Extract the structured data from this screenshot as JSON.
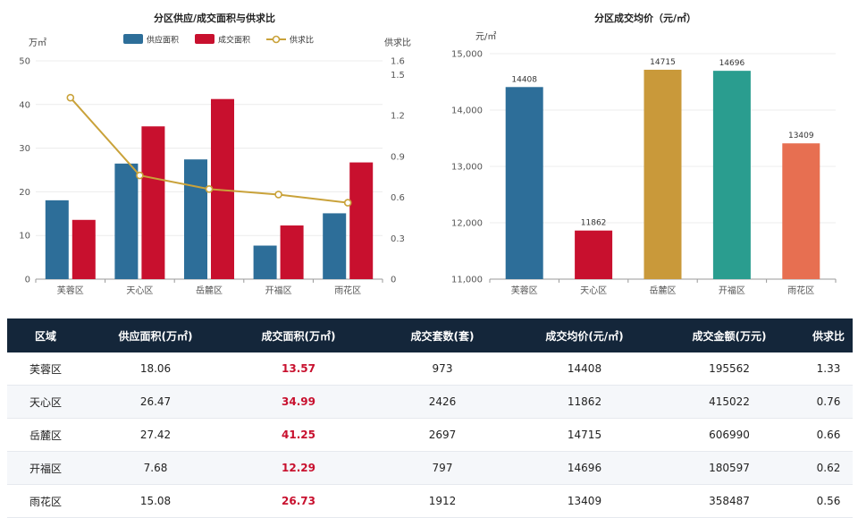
{
  "chart_data": [
    {
      "type": "bar",
      "title": "分区供应/成交面积与供求比",
      "y_left_unit": "万㎡",
      "y_right_unit": "供求比",
      "categories": [
        "芙蓉区",
        "天心区",
        "岳麓区",
        "开福区",
        "雨花区"
      ],
      "series": [
        {
          "name": "供应面积",
          "type": "bar",
          "axis": "left",
          "color": "#2d6e99",
          "values": [
            18.06,
            26.47,
            27.42,
            7.68,
            15.08
          ]
        },
        {
          "name": "成交面积",
          "type": "bar",
          "axis": "left",
          "color": "#c8102e",
          "values": [
            13.57,
            34.99,
            41.25,
            12.29,
            26.73
          ]
        },
        {
          "name": "供求比",
          "type": "line",
          "axis": "right",
          "color": "#c9a23a",
          "values": [
            1.33,
            0.76,
            0.66,
            0.62,
            0.56
          ]
        }
      ],
      "ylim_left": [
        0,
        50
      ],
      "yticks_left": [
        0,
        10,
        20,
        30,
        40,
        50
      ],
      "ylim_right": [
        0,
        1.6
      ],
      "yticks_right": [
        0,
        0.3,
        0.6,
        0.9,
        1.2,
        1.5,
        1.6
      ],
      "ytick_labels_right": [
        "0",
        "0.3",
        "0.6",
        "0.9",
        "1.2",
        "1.5",
        "1.6"
      ],
      "legend_position": "top-center",
      "grid": true
    },
    {
      "type": "bar",
      "title": "分区成交均价（元/㎡）",
      "y_unit": "元/㎡",
      "categories": [
        "芙蓉区",
        "天心区",
        "岳麓区",
        "开福区",
        "雨花区"
      ],
      "values": [
        14408,
        11862,
        14715,
        14696,
        13409
      ],
      "value_labels": [
        "14408",
        "11862",
        "14715",
        "14696",
        "13409"
      ],
      "colors": [
        "#2d6e99",
        "#c8102e",
        "#c9993a",
        "#2a9d8f",
        "#e76f51"
      ],
      "ylim": [
        11000,
        15000
      ],
      "yticks": [
        11000,
        12000,
        13000,
        14000,
        15000
      ],
      "ytick_labels": [
        "11,000",
        "12,000",
        "13,000",
        "14,000",
        "15,000"
      ],
      "grid": true
    }
  ],
  "table": {
    "headers": [
      "区域",
      "供应面积(万㎡)",
      "成交面积(万㎡)",
      "成交套数(套)",
      "成交均价(元/㎡)",
      "成交金额(万元)",
      "供求比"
    ],
    "rows": [
      [
        "芙蓉区",
        "18.06",
        "13.57",
        "973",
        "14408",
        "195562",
        "1.33"
      ],
      [
        "天心区",
        "26.47",
        "34.99",
        "2426",
        "11862",
        "415022",
        "0.76"
      ],
      [
        "岳麓区",
        "27.42",
        "41.25",
        "2697",
        "14715",
        "606990",
        "0.66"
      ],
      [
        "开福区",
        "7.68",
        "12.29",
        "797",
        "14696",
        "180597",
        "0.62"
      ],
      [
        "雨花区",
        "15.08",
        "26.73",
        "1912",
        "13409",
        "358487",
        "0.56"
      ]
    ]
  }
}
